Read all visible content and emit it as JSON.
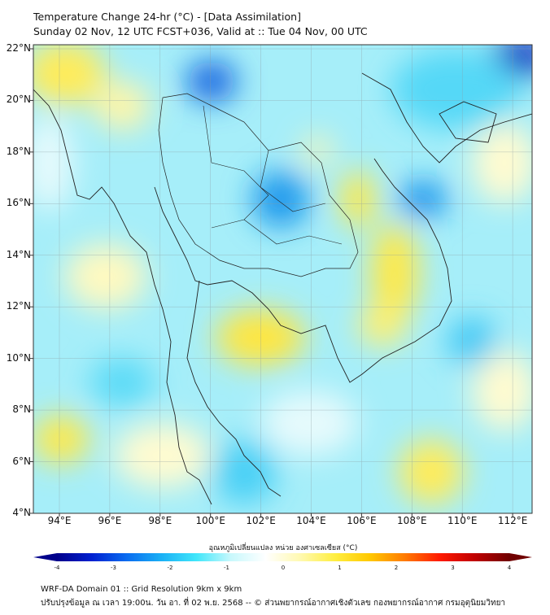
{
  "header": {
    "title": "Temperature Change 24-hr (°C) - [Data Assimilation]",
    "subtitle": "Sunday 02 Nov, 12 UTC FCST+036, Valid at :: Tue 04 Nov, 00 UTC"
  },
  "map": {
    "lat_labels": [
      "22°N",
      "20°N",
      "18°N",
      "16°N",
      "14°N",
      "12°N",
      "10°N",
      "8°N",
      "6°N",
      "4°N"
    ],
    "lon_labels": [
      "94°E",
      "96°E",
      "98°E",
      "100°E",
      "102°E",
      "104°E",
      "106°E",
      "108°E",
      "110°E",
      "112°E"
    ],
    "lat_range": [
      4,
      22
    ],
    "lon_range": [
      93,
      112.8
    ]
  },
  "colorbar": {
    "title": "อุณหภูมิเปลี่ยนแปลง หน่วย องศาเซลเซียส (°C)",
    "ticks": [
      "-4",
      "-3",
      "-2",
      "-1",
      "0",
      "1",
      "2",
      "3",
      "4"
    ],
    "range": [
      -4,
      4
    ],
    "colors": [
      "#00008b",
      "#0020d0",
      "#0a6cf0",
      "#1ab0f5",
      "#40e6fa",
      "#c8f8fc",
      "#ffffff",
      "#fff9b0",
      "#ffee40",
      "#ffc800",
      "#ff7a00",
      "#ff1a00",
      "#c00000",
      "#700000"
    ]
  },
  "footer": {
    "line1": "WRF-DA Domain 01 :: Grid Resolution 9km x 9km",
    "line2": "ปรับปรุงข้อมูล ณ เวลา 19:00น. วัน อา. ที่ 02 พ.ย. 2568 -- © ส่วนพยากรณ์อากาศเชิงตัวเลข กองพยากรณ์อากาศ กรมอุตุนิยมวิทยา"
  }
}
